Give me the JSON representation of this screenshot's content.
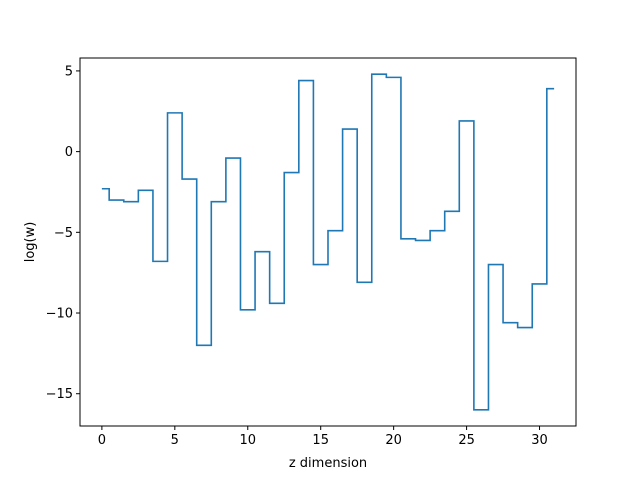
{
  "chart_data": {
    "type": "line",
    "drawstyle": "steps-mid",
    "title": "",
    "xlabel": "z dimension",
    "ylabel": "log(w)",
    "xlim": [
      -1.5,
      32.5
    ],
    "ylim": [
      -17,
      5.8
    ],
    "xticks": [
      0,
      5,
      10,
      15,
      20,
      25,
      30
    ],
    "yticks": [
      5,
      0,
      -5,
      -10,
      -15
    ],
    "ytick_labels": [
      "5",
      "0",
      "−5",
      "−10",
      "−15"
    ],
    "grid": false,
    "legend": "none",
    "line_color": "#1f77b4",
    "series": [
      {
        "x": [
          0,
          1,
          2,
          3,
          4,
          5,
          6,
          7,
          8,
          9,
          10,
          11,
          12,
          13,
          14,
          15,
          16,
          17,
          18,
          19,
          20,
          21,
          22,
          23,
          24,
          25,
          26,
          27,
          28,
          29,
          30,
          31
        ],
        "values": [
          -2.3,
          -3.0,
          -3.1,
          -2.4,
          -6.8,
          2.4,
          -1.7,
          -12.0,
          -3.1,
          -0.4,
          -9.8,
          -6.2,
          -9.4,
          -1.3,
          4.4,
          -7.0,
          -4.9,
          1.4,
          -8.1,
          4.8,
          4.6,
          -5.4,
          -5.5,
          -4.9,
          -3.7,
          1.9,
          -16.0,
          -7.0,
          -10.6,
          -10.9,
          -8.2,
          3.9
        ]
      }
    ]
  }
}
